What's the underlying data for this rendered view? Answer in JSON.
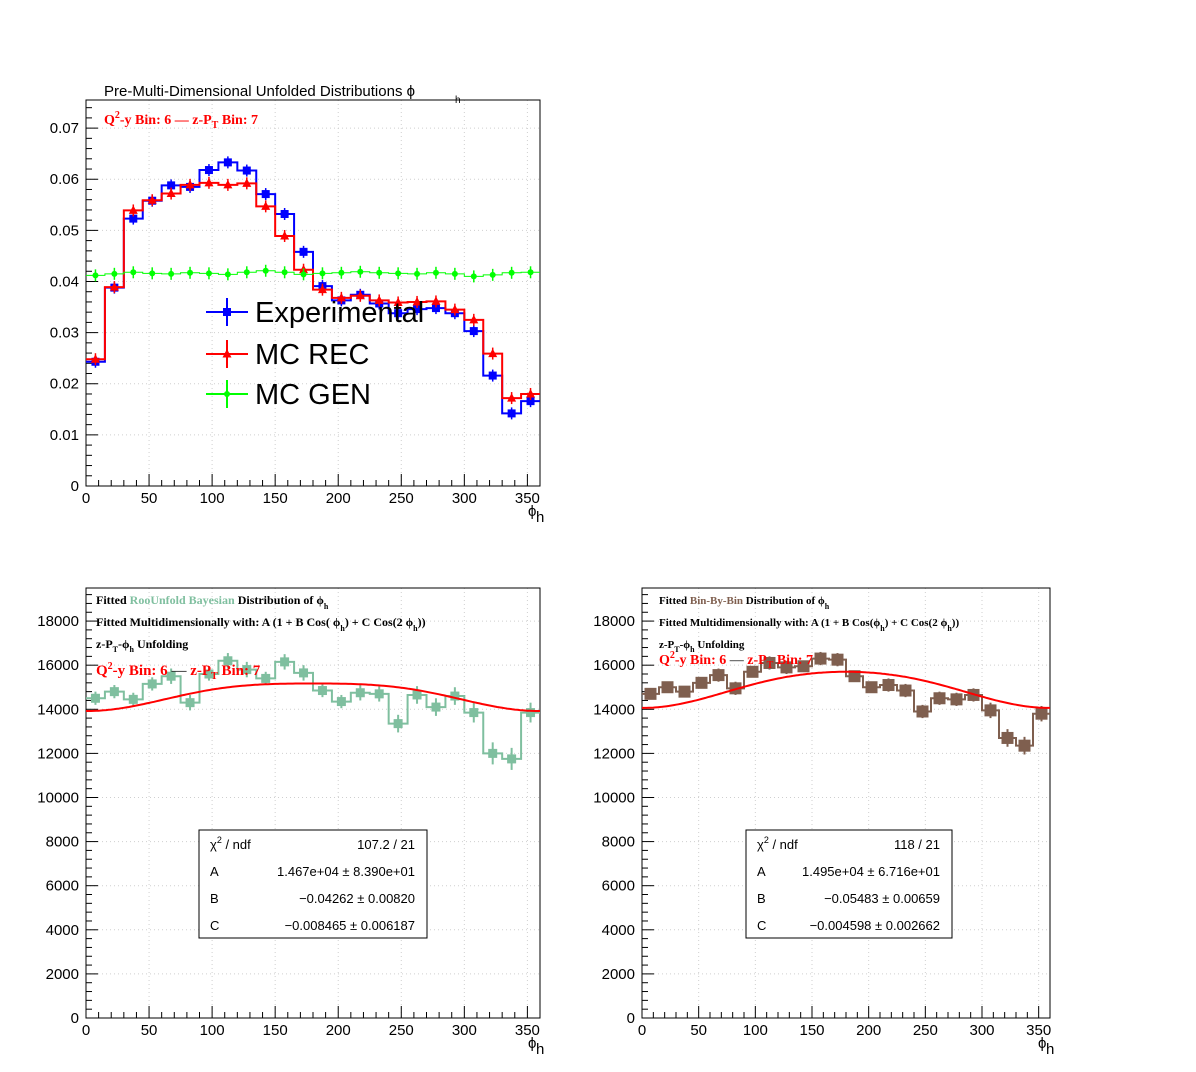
{
  "chart_data": [
    {
      "type": "line",
      "title": "Pre-Multi-Dimensional Unfolded Distributions ϕ",
      "title_sub": "h",
      "info": {
        "a": "Q",
        "a_sup": "2",
        "b": "-y Bin: 6  —  z-P",
        "b_sub": "T",
        "c": " Bin: 7",
        "color": "#ff0000"
      },
      "xlabel": "ϕ",
      "xlabel_sub": "h",
      "xlim": [
        0,
        360
      ],
      "ylim": [
        0,
        0.0755
      ],
      "xticks": [
        0,
        50,
        100,
        150,
        200,
        250,
        300,
        350
      ],
      "yticks": [
        0,
        0.01,
        0.02,
        0.03,
        0.04,
        0.05,
        0.06,
        0.07
      ],
      "ytick_labels": [
        "0",
        "0.01",
        "0.02",
        "0.03",
        "0.04",
        "0.05",
        "0.06",
        "0.07"
      ],
      "bin_width": 15,
      "x": [
        7.5,
        22.5,
        37.5,
        52.5,
        67.5,
        82.5,
        97.5,
        112.5,
        127.5,
        142.5,
        157.5,
        172.5,
        187.5,
        202.5,
        217.5,
        232.5,
        247.5,
        262.5,
        277.5,
        292.5,
        307.5,
        322.5,
        337.5,
        352.5
      ],
      "series": [
        {
          "name": "Experimental",
          "color": "#0000ff",
          "marker": "square",
          "values": [
            0.0243,
            0.0388,
            0.0523,
            0.0558,
            0.0588,
            0.0585,
            0.0618,
            0.0633,
            0.0617,
            0.0571,
            0.0532,
            0.0458,
            0.0391,
            0.0363,
            0.0374,
            0.0357,
            0.0338,
            0.0346,
            0.0348,
            0.0338,
            0.0303,
            0.0216,
            0.0142,
            0.0166
          ]
        },
        {
          "name": "MC REC",
          "color": "#ff0000",
          "marker": "triangle",
          "values": [
            0.0248,
            0.0389,
            0.0539,
            0.0559,
            0.0572,
            0.0589,
            0.0593,
            0.0589,
            0.0592,
            0.0547,
            0.0489,
            0.0423,
            0.0384,
            0.0368,
            0.0372,
            0.0363,
            0.0359,
            0.036,
            0.0361,
            0.0345,
            0.0325,
            0.0259,
            0.0172,
            0.018
          ]
        },
        {
          "name": "MC GEN",
          "color": "#00ff00",
          "marker": "circle",
          "marker_only": true,
          "values": [
            0.0412,
            0.0415,
            0.0418,
            0.0416,
            0.0415,
            0.0417,
            0.0416,
            0.0414,
            0.0418,
            0.0421,
            0.0418,
            0.0414,
            0.0416,
            0.0417,
            0.0419,
            0.0417,
            0.0416,
            0.0415,
            0.0417,
            0.0415,
            0.041,
            0.0413,
            0.0417,
            0.0418
          ]
        }
      ]
    },
    {
      "type": "line",
      "texts": {
        "l1a": "Fitted",
        "l1b": "RooUnfold Bayesian",
        "l1c": "Distribution of",
        "l1d": "ϕ",
        "l1e": "h",
        "l2a": "Fitted Multidimensionally with: A (1 + B Cos(",
        "l2b": "ϕ",
        "l2c": "h",
        "l2d": ") + C Cos(2",
        "l2e": "ϕ",
        "l2f": "h",
        "l2g": "))",
        "l3a": "z-P",
        "l3b": "T",
        "l3c": "-ϕ",
        "l3d": "h",
        "l3e": " Unfolding",
        "l4a": "Q",
        "l4b": "2",
        "l4c": "-y Bin: 6",
        "l4d": "—",
        "l4e": "z-P",
        "l4f": "T",
        "l4g": " Bin: 7",
        "accent": "#7fbf9f"
      },
      "xlabel": "ϕ",
      "xlabel_sub": "h",
      "xlim": [
        0,
        360
      ],
      "ylim": [
        0,
        19500
      ],
      "xticks": [
        0,
        50,
        100,
        150,
        200,
        250,
        300,
        350
      ],
      "yticks": [
        0,
        2000,
        4000,
        6000,
        8000,
        10000,
        12000,
        14000,
        16000,
        18000
      ],
      "bin_width": 15,
      "x": [
        7.5,
        22.5,
        37.5,
        52.5,
        67.5,
        82.5,
        97.5,
        112.5,
        127.5,
        142.5,
        157.5,
        172.5,
        187.5,
        202.5,
        217.5,
        232.5,
        247.5,
        262.5,
        277.5,
        292.5,
        307.5,
        322.5,
        337.5,
        352.5
      ],
      "series": [
        {
          "name": "RooUnfold Bayesian",
          "color": "#7fbf9f",
          "values": [
            14500,
            14800,
            14450,
            15150,
            15500,
            14300,
            15600,
            16200,
            15800,
            15400,
            16150,
            15650,
            14850,
            14350,
            14750,
            14700,
            13350,
            14650,
            14100,
            14600,
            13850,
            12000,
            11750,
            13850
          ],
          "errors": [
            300,
            300,
            300,
            300,
            350,
            350,
            300,
            350,
            350,
            300,
            350,
            350,
            300,
            300,
            350,
            350,
            400,
            400,
            400,
            400,
            450,
            500,
            500,
            450
          ]
        }
      ],
      "fit": {
        "A": 14670,
        "B": -0.04262,
        "C": -0.008465,
        "color": "#ff0000"
      },
      "stats": [
        {
          "label": "χ",
          "label_sup": "2",
          "label_rest": " / ndf",
          "value": "107.2 / 21"
        },
        {
          "label": "A",
          "value": "1.467e+04 ± 8.390e+01"
        },
        {
          "label": "B",
          "value": "−0.04262 ± 0.00820"
        },
        {
          "label": "C",
          "value": "−0.008465 ± 0.006187"
        }
      ]
    },
    {
      "type": "line",
      "texts": {
        "l1a": "Fitted",
        "l1b": "Bin-By-Bin",
        "l1c": "Distribution of",
        "l1d": "ϕ",
        "l1e": "h",
        "l2a": "Fitted Multidimensionally with: A (1 + B Cos(",
        "l2b": "ϕ",
        "l2c": "h",
        "l2d": ") + C Cos(2",
        "l2e": "ϕ",
        "l2f": "h",
        "l2g": "))",
        "l3a": "z-P",
        "l3b": "T",
        "l3c": "-ϕ",
        "l3d": "h",
        "l3e": " Unfolding",
        "l4a": "Q",
        "l4b": "2",
        "l4c": "-y Bin: 6",
        "l4d": "—",
        "l4e": "z-P",
        "l4f": "T",
        "l4g": " Bin: 7",
        "accent": "#7f5f4f"
      },
      "xlabel": "ϕ",
      "xlabel_sub": "h",
      "xlim": [
        0,
        360
      ],
      "ylim": [
        0,
        19500
      ],
      "xticks": [
        0,
        50,
        100,
        150,
        200,
        250,
        300,
        350
      ],
      "yticks": [
        0,
        2000,
        4000,
        6000,
        8000,
        10000,
        12000,
        14000,
        16000,
        18000
      ],
      "bin_width": 15,
      "x": [
        7.5,
        22.5,
        37.5,
        52.5,
        67.5,
        82.5,
        97.5,
        112.5,
        127.5,
        142.5,
        157.5,
        172.5,
        187.5,
        202.5,
        217.5,
        232.5,
        247.5,
        262.5,
        277.5,
        292.5,
        307.5,
        322.5,
        337.5,
        352.5
      ],
      "series": [
        {
          "name": "Bin-By-Bin",
          "color": "#7f5f4f",
          "values": [
            14700,
            15000,
            14800,
            15200,
            15550,
            14950,
            15700,
            16100,
            15900,
            15950,
            16300,
            16250,
            15500,
            15000,
            15100,
            14850,
            13900,
            14500,
            14450,
            14650,
            13950,
            12700,
            12350,
            13800
          ],
          "errors": [
            250,
            250,
            250,
            250,
            300,
            300,
            250,
            300,
            300,
            250,
            300,
            300,
            250,
            250,
            300,
            300,
            300,
            300,
            300,
            300,
            350,
            400,
            400,
            350
          ]
        }
      ],
      "fit": {
        "A": 14950,
        "B": -0.05483,
        "C": -0.004598,
        "color": "#ff0000"
      },
      "stats": [
        {
          "label": "χ",
          "label_sup": "2",
          "label_rest": " / ndf",
          "value": "118 / 21"
        },
        {
          "label": "A",
          "value": "1.495e+04 ± 6.716e+01"
        },
        {
          "label": "B",
          "value": "−0.05483 ± 0.00659"
        },
        {
          "label": "C",
          "value": "−0.004598 ± 0.002662"
        }
      ]
    }
  ]
}
